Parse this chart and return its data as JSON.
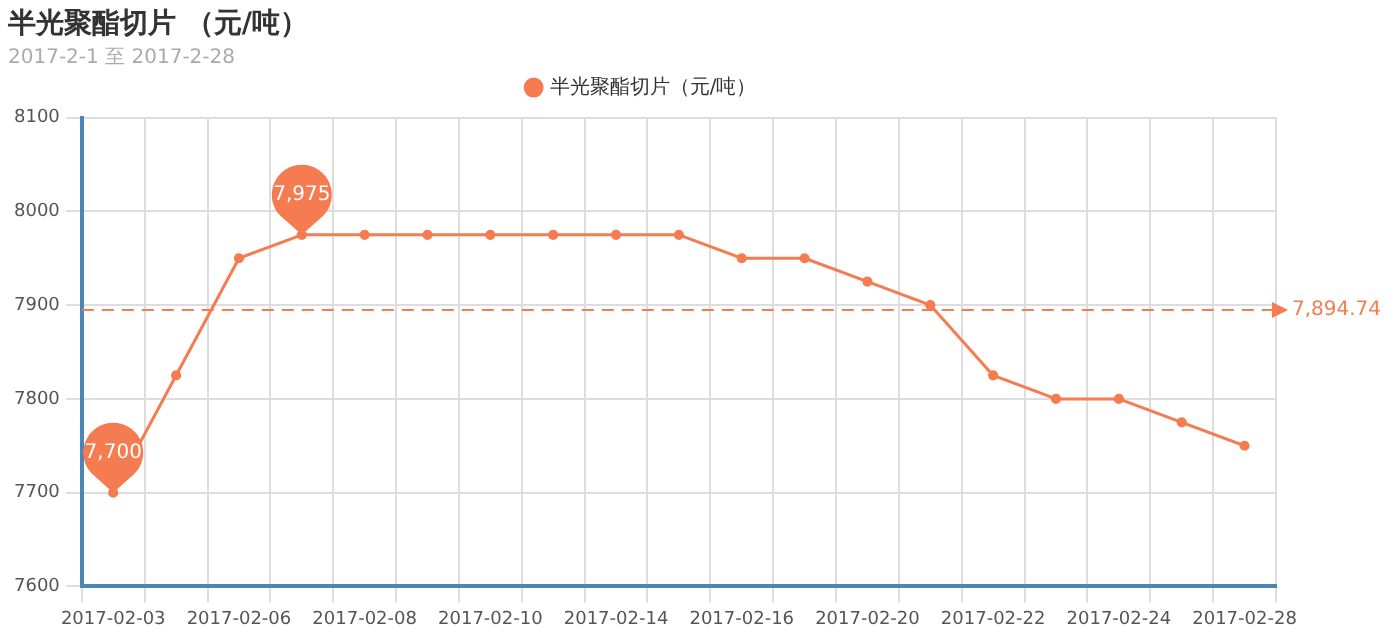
{
  "chart_data": {
    "type": "line",
    "title": "半光聚酯切片 （元/吨）",
    "subtitle": "2017-2-1 至 2017-2-28",
    "categories": [
      "2017-02-03",
      null,
      "2017-02-06",
      null,
      "2017-02-08",
      null,
      "2017-02-10",
      null,
      "2017-02-14",
      null,
      "2017-02-16",
      null,
      "2017-02-20",
      null,
      "2017-02-22",
      null,
      "2017-02-24",
      null,
      "2017-02-28"
    ],
    "series": [
      {
        "name": "半光聚酯切片（元/吨）",
        "color": "#f47c50",
        "values": [
          7700,
          7825,
          7950,
          7975,
          7975,
          7975,
          7975,
          7975,
          7975,
          7975,
          7950,
          7950,
          7925,
          7900,
          7825,
          7800,
          7800,
          7775,
          7750
        ]
      }
    ],
    "ylim": [
      7600,
      8100
    ],
    "yticks": [
      7600,
      7700,
      7800,
      7900,
      8000,
      8100
    ],
    "ref_lines": [
      {
        "axis": "y",
        "value": 7894.74,
        "label": "7,894.74",
        "color": "#f47c50",
        "line_style": "dashed"
      }
    ],
    "annotations": [
      {
        "text": "7,700",
        "x": "2017-02-03",
        "y": 7700
      },
      {
        "text": "7,975",
        "y": 7975
      }
    ],
    "grid": true,
    "legend": "top",
    "marker": "circle",
    "line_style": "solid"
  }
}
